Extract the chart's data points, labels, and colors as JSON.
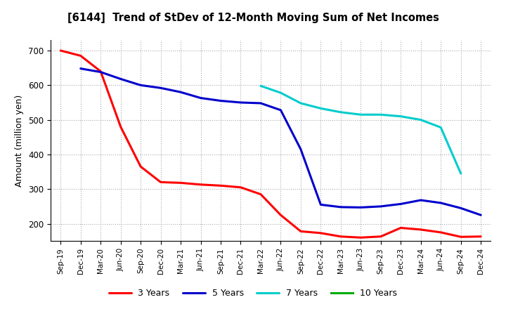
{
  "title": "[6144]  Trend of StDev of 12-Month Moving Sum of Net Incomes",
  "ylabel": "Amount (million yen)",
  "ylim": [
    150,
    730
  ],
  "yticks": [
    200,
    300,
    400,
    500,
    600,
    700
  ],
  "background_color": "#ffffff",
  "grid_color": "#bbbbbb",
  "x_labels": [
    "Sep-19",
    "Dec-19",
    "Mar-20",
    "Jun-20",
    "Sep-20",
    "Dec-20",
    "Mar-21",
    "Jun-21",
    "Sep-21",
    "Dec-21",
    "Mar-22",
    "Jun-22",
    "Sep-22",
    "Dec-22",
    "Mar-23",
    "Jun-23",
    "Sep-23",
    "Dec-23",
    "Mar-24",
    "Jun-24",
    "Sep-24",
    "Dec-24"
  ],
  "series": {
    "3 Years": {
      "color": "#ff0000",
      "data_x": [
        0,
        1,
        2,
        3,
        4,
        5,
        6,
        7,
        8,
        9,
        10,
        11,
        12,
        13,
        14,
        15,
        16,
        17,
        18,
        19,
        20,
        21
      ],
      "data_y": [
        700,
        685,
        640,
        480,
        365,
        320,
        318,
        313,
        310,
        305,
        285,
        225,
        178,
        173,
        163,
        160,
        163,
        188,
        183,
        175,
        162,
        163
      ]
    },
    "5 Years": {
      "color": "#0000cc",
      "data_x": [
        1,
        2,
        3,
        4,
        5,
        6,
        7,
        8,
        9,
        10,
        11,
        12,
        13,
        14,
        15,
        16,
        17,
        18,
        19,
        20,
        21
      ],
      "data_y": [
        648,
        638,
        618,
        600,
        592,
        580,
        563,
        555,
        550,
        548,
        528,
        415,
        255,
        248,
        247,
        250,
        257,
        268,
        260,
        245,
        225
      ]
    },
    "7 Years": {
      "color": "#00cccc",
      "data_x": [
        10,
        11,
        12,
        13,
        14,
        15,
        16,
        17,
        18,
        19,
        20
      ],
      "data_y": [
        598,
        578,
        548,
        533,
        522,
        515,
        515,
        510,
        500,
        478,
        345
      ]
    },
    "10 Years": {
      "color": "#00aa00",
      "data_x": [],
      "data_y": []
    }
  },
  "legend_items": [
    "3 Years",
    "5 Years",
    "7 Years",
    "10 Years"
  ],
  "legend_colors": [
    "#ff0000",
    "#0000cc",
    "#00cccc",
    "#00aa00"
  ]
}
